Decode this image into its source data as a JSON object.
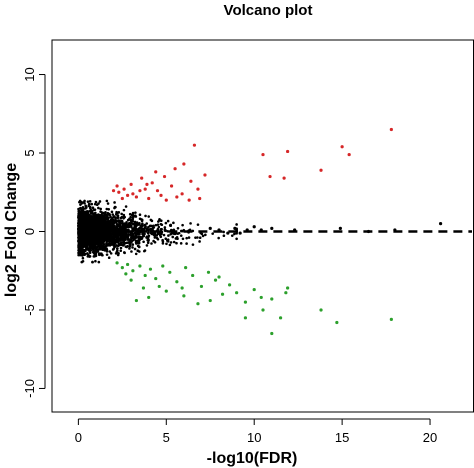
{
  "chart_data": {
    "type": "scatter",
    "title": "Volcano plot",
    "xlabel": "-log10(FDR)",
    "ylabel": "log2 Fold Change",
    "xlim": [
      -1.5,
      22.5
    ],
    "ylim": [
      -11.5,
      12.2
    ],
    "x_ticks": [
      0,
      5,
      10,
      15,
      20
    ],
    "y_ticks": [
      -10,
      -5,
      0,
      5,
      10
    ],
    "grid": false,
    "legend": "none",
    "reference_line": {
      "y": 0,
      "style": "dashed"
    },
    "colors": {
      "up": "#d62728",
      "down": "#2ca02c",
      "ns": "#000000",
      "axis": "#000000"
    },
    "series": [
      {
        "group": "up",
        "points": [
          [
            6.6,
            5.5
          ],
          [
            5.5,
            4.0
          ],
          [
            6.0,
            4.3
          ],
          [
            10.5,
            4.9
          ],
          [
            11.9,
            5.1
          ],
          [
            15.0,
            5.4
          ],
          [
            15.4,
            4.9
          ],
          [
            17.8,
            6.5
          ],
          [
            11.7,
            3.4
          ],
          [
            10.9,
            3.5
          ],
          [
            13.8,
            3.9
          ],
          [
            7.2,
            3.6
          ],
          [
            6.4,
            3.2
          ],
          [
            4.9,
            3.5
          ],
          [
            4.2,
            3.1
          ],
          [
            3.6,
            3.4
          ],
          [
            3.0,
            3.0
          ],
          [
            2.6,
            2.7
          ],
          [
            2.3,
            2.5
          ],
          [
            2.0,
            2.6
          ],
          [
            2.5,
            2.1
          ],
          [
            3.1,
            2.4
          ],
          [
            3.8,
            2.7
          ],
          [
            4.5,
            2.6
          ],
          [
            5.3,
            2.9
          ],
          [
            5.9,
            2.4
          ],
          [
            6.8,
            2.7
          ],
          [
            4.0,
            2.1
          ],
          [
            5.0,
            2.0
          ],
          [
            3.3,
            2.2
          ],
          [
            2.8,
            2.3
          ],
          [
            5.6,
            2.2
          ],
          [
            6.3,
            2.0
          ],
          [
            4.7,
            2.3
          ],
          [
            2.2,
            2.9
          ],
          [
            3.9,
            3.0
          ],
          [
            6.9,
            2.1
          ],
          [
            4.4,
            3.8
          ],
          [
            3.5,
            2.6
          ]
        ]
      },
      {
        "group": "down",
        "points": [
          [
            2.2,
            -2.0
          ],
          [
            2.5,
            -2.3
          ],
          [
            2.8,
            -2.1
          ],
          [
            3.1,
            -2.5
          ],
          [
            3.5,
            -2.2
          ],
          [
            3.8,
            -2.8
          ],
          [
            4.1,
            -2.4
          ],
          [
            4.4,
            -3.0
          ],
          [
            4.8,
            -2.2
          ],
          [
            5.2,
            -2.6
          ],
          [
            5.6,
            -3.2
          ],
          [
            6.1,
            -2.3
          ],
          [
            6.5,
            -2.8
          ],
          [
            7.0,
            -3.5
          ],
          [
            7.4,
            -2.6
          ],
          [
            7.8,
            -3.1
          ],
          [
            8.2,
            -4.0
          ],
          [
            8.6,
            -3.4
          ],
          [
            9.0,
            -3.9
          ],
          [
            9.5,
            -4.5
          ],
          [
            10.0,
            -3.7
          ],
          [
            10.4,
            -4.2
          ],
          [
            11.0,
            -4.3
          ],
          [
            11.9,
            -3.6
          ],
          [
            11.8,
            -3.9
          ],
          [
            11.5,
            -5.5
          ],
          [
            11.0,
            -6.5
          ],
          [
            9.5,
            -5.5
          ],
          [
            10.5,
            -5.0
          ],
          [
            13.8,
            -5.0
          ],
          [
            14.7,
            -5.8
          ],
          [
            17.8,
            -5.6
          ],
          [
            3.3,
            -4.4
          ],
          [
            4.0,
            -4.2
          ],
          [
            3.0,
            -3.1
          ],
          [
            5.0,
            -3.8
          ],
          [
            6.0,
            -4.1
          ],
          [
            7.5,
            -4.4
          ],
          [
            2.7,
            -2.7
          ],
          [
            4.6,
            -3.5
          ],
          [
            5.9,
            -3.6
          ],
          [
            8.0,
            -2.9
          ],
          [
            6.8,
            -4.6
          ],
          [
            3.7,
            -3.6
          ]
        ]
      },
      {
        "group": "ns",
        "points": [
          [
            20.6,
            0.5
          ],
          [
            18.0,
            0.1
          ],
          [
            14.9,
            0.2
          ],
          [
            12.3,
            0.1
          ],
          [
            11.0,
            0.2
          ],
          [
            10.4,
            0.1
          ],
          [
            9.6,
            0.1
          ],
          [
            16.5,
            0.0
          ],
          [
            8.9,
            0.2
          ],
          [
            8.5,
            -0.1
          ],
          [
            8.0,
            0.1
          ],
          [
            7.5,
            0.2
          ],
          [
            9.2,
            -0.1
          ],
          [
            10.0,
            0.3
          ]
        ]
      }
    ]
  }
}
